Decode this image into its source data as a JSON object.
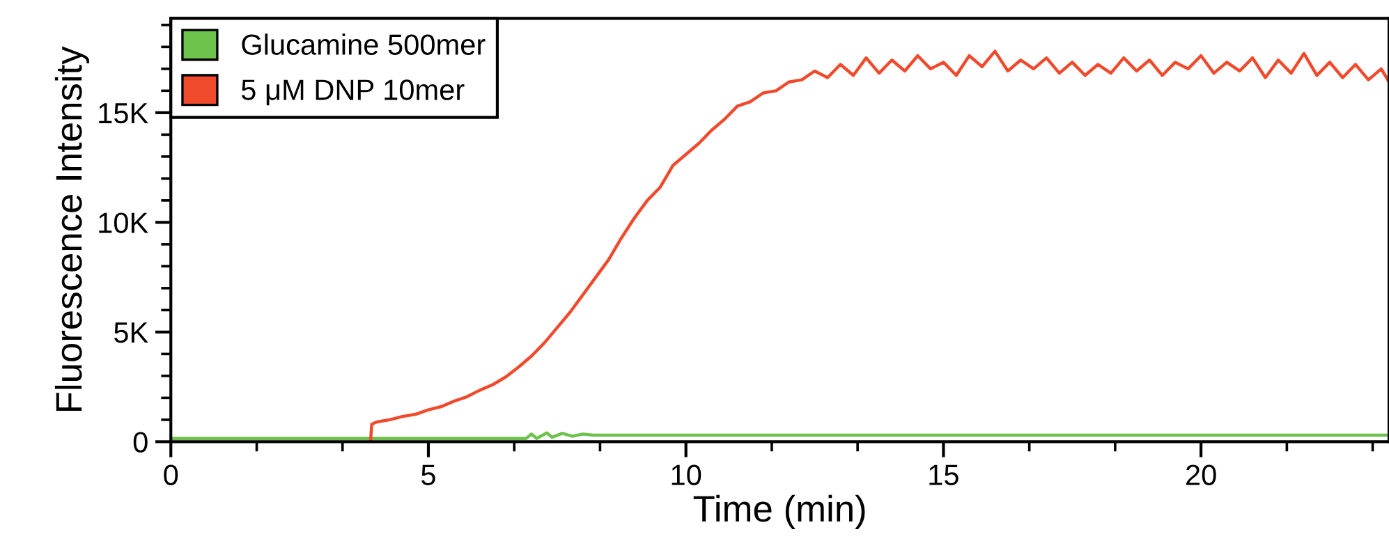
{
  "chart_data": {
    "type": "line",
    "xlabel": "Time (min)",
    "ylabel": "Fluorescence Intensity",
    "legend": "top left",
    "grid": false,
    "xlim": [
      0,
      23.65
    ],
    "ylim": [
      0,
      19300
    ],
    "xticks": [
      0,
      {
        "value": 1.667,
        "label": null
      },
      {
        "value": 3.333,
        "label": null
      },
      5,
      {
        "value": 6.667,
        "label": null
      },
      {
        "value": 8.333,
        "label": null
      },
      10,
      {
        "value": 11.667,
        "label": null
      },
      {
        "value": 13.333,
        "label": null
      },
      15,
      {
        "value": 16.667,
        "label": null
      },
      {
        "value": 18.333,
        "label": null
      },
      20,
      {
        "value": 21.667,
        "label": null
      },
      {
        "value": 23.333,
        "label": null
      }
    ],
    "yticks": [
      0,
      {
        "value": 1000,
        "label": null
      },
      {
        "value": 2000,
        "label": null
      },
      {
        "value": 3000,
        "label": null
      },
      {
        "value": 4000,
        "label": null
      },
      {
        "value": 5000,
        "label": "5K"
      },
      {
        "value": 6000,
        "label": null
      },
      {
        "value": 7000,
        "label": null
      },
      {
        "value": 8000,
        "label": null
      },
      {
        "value": 9000,
        "label": null
      },
      {
        "value": 10000,
        "label": "10K"
      },
      {
        "value": 11000,
        "label": null
      },
      {
        "value": 12000,
        "label": null
      },
      {
        "value": 13000,
        "label": null
      },
      {
        "value": 14000,
        "label": null
      },
      {
        "value": 15000,
        "label": "15K"
      },
      {
        "value": 16000,
        "label": null
      },
      {
        "value": 17000,
        "label": null
      },
      {
        "value": 18000,
        "label": null
      },
      {
        "value": 19000,
        "label": null
      }
    ],
    "series": [
      {
        "name": "Glucamine 500mer",
        "color": "#6cc24a",
        "x": [
          0,
          6.9,
          7.0,
          7.1,
          7.3,
          7.4,
          7.6,
          7.8,
          8.0,
          8.2,
          23.65
        ],
        "values": [
          150,
          150,
          350,
          150,
          400,
          200,
          380,
          250,
          350,
          300,
          300
        ]
      },
      {
        "name": "5 μM DNP 10mer",
        "color": "#f04a2c",
        "x": [
          3.88,
          3.9,
          4.0,
          4.25,
          4.5,
          4.75,
          5.0,
          5.25,
          5.5,
          5.75,
          6.0,
          6.25,
          6.5,
          6.75,
          7.0,
          7.25,
          7.5,
          7.75,
          8.0,
          8.25,
          8.5,
          8.75,
          9.0,
          9.25,
          9.5,
          9.75,
          10.0,
          10.25,
          10.5,
          10.75,
          11.0,
          11.25,
          11.5,
          11.75,
          12.0,
          12.25,
          12.5,
          12.75,
          13.0,
          13.25,
          13.5,
          13.75,
          14.0,
          14.25,
          14.5,
          14.75,
          15.0,
          15.25,
          15.5,
          15.75,
          16.0,
          16.25,
          16.5,
          16.75,
          17.0,
          17.25,
          17.5,
          17.75,
          18.0,
          18.25,
          18.5,
          18.75,
          19.0,
          19.25,
          19.5,
          19.75,
          20.0,
          20.25,
          20.5,
          20.75,
          21.0,
          21.25,
          21.5,
          21.75,
          22.0,
          22.25,
          22.5,
          22.75,
          23.0,
          23.25,
          23.5,
          23.65
        ],
        "values": [
          100,
          800,
          900,
          1000,
          1150,
          1250,
          1450,
          1600,
          1850,
          2050,
          2350,
          2600,
          2950,
          3400,
          3900,
          4500,
          5200,
          5900,
          6700,
          7500,
          8300,
          9300,
          10200,
          11000,
          11600,
          12600,
          13100,
          13600,
          14200,
          14700,
          15300,
          15500,
          15900,
          16000,
          16400,
          16500,
          16900,
          16600,
          17200,
          16700,
          17500,
          16800,
          17400,
          16900,
          17600,
          17000,
          17300,
          16700,
          17600,
          17100,
          17800,
          16900,
          17400,
          17000,
          17500,
          16800,
          17300,
          16700,
          17200,
          16800,
          17500,
          16900,
          17400,
          16700,
          17300,
          17000,
          17600,
          16800,
          17300,
          16900,
          17500,
          16600,
          17400,
          16800,
          17700,
          16700,
          17300,
          16600,
          17200,
          16500,
          17000,
          16400
        ]
      }
    ]
  }
}
